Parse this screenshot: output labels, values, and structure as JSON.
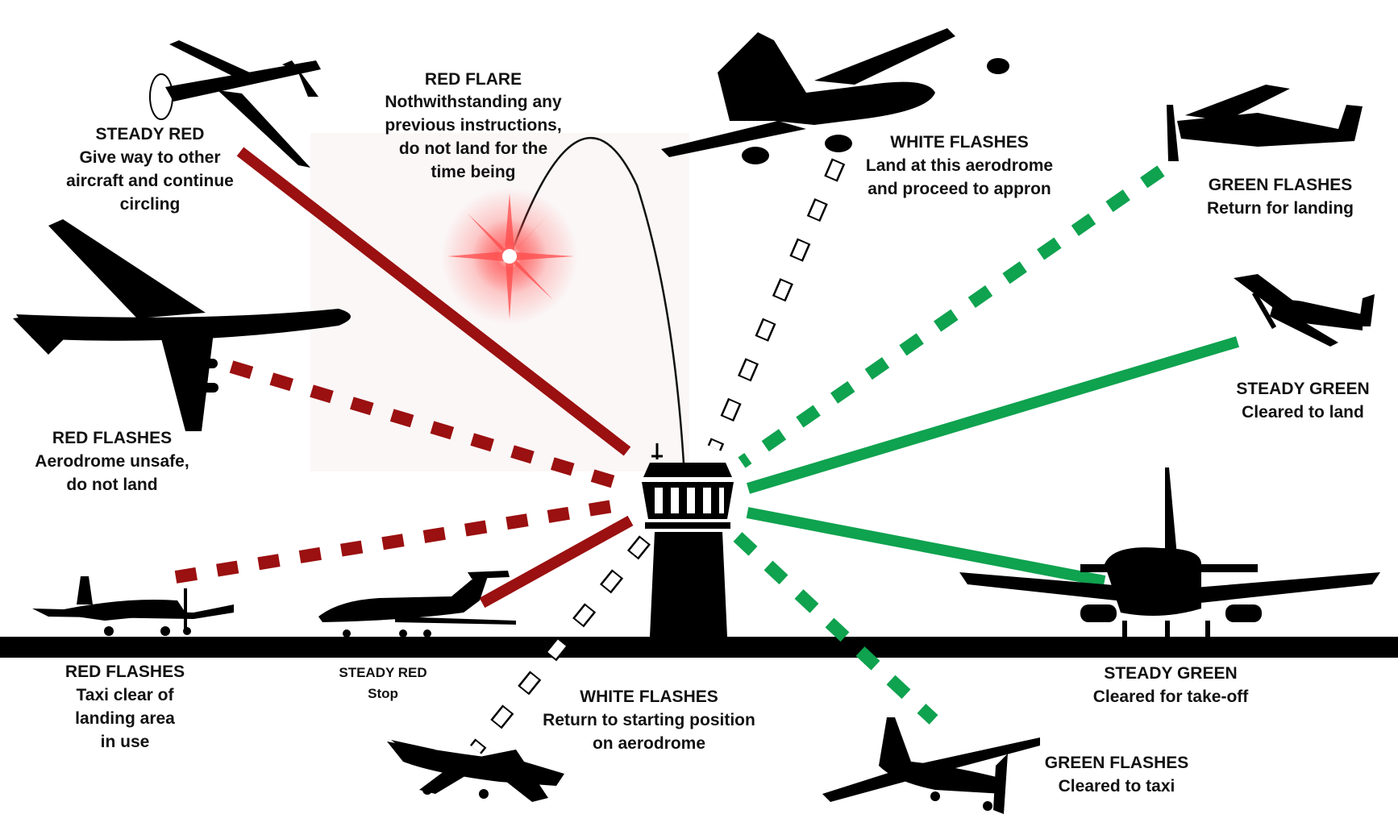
{
  "colors": {
    "red_signal": "#9b1010",
    "green_signal": "#0fa24f",
    "white_signal": "#ffffff",
    "silhouette": "#000000",
    "flare": "#ff3b3b"
  },
  "tower_icon": "control-tower-icon",
  "signals": {
    "red_flare": {
      "title": "RED FLARE",
      "lines": [
        "Nothwithstanding any",
        "previous instructions,",
        "do not land for the",
        "time being"
      ]
    },
    "steady_red_air": {
      "title": "STEADY RED",
      "lines": [
        "Give way to other",
        "aircraft and continue",
        "circling"
      ]
    },
    "red_flashes_air": {
      "title": "RED FLASHES",
      "lines": [
        "Aerodrome unsafe,",
        "do not land"
      ]
    },
    "white_flashes_air": {
      "title": "WHITE FLASHES",
      "lines": [
        "Land at this aerodrome",
        "and proceed to appron"
      ]
    },
    "green_flashes_air": {
      "title": "GREEN FLASHES",
      "lines": [
        "Return for landing"
      ]
    },
    "steady_green_air": {
      "title": "STEADY GREEN",
      "lines": [
        "Cleared to land"
      ]
    },
    "red_flashes_ground": {
      "title": "RED FLASHES",
      "lines": [
        "Taxi clear of",
        "landing area",
        "in use"
      ]
    },
    "steady_red_ground": {
      "title": "STEADY RED",
      "lines": [
        "Stop"
      ]
    },
    "white_flashes_ground": {
      "title": "WHITE FLASHES",
      "lines": [
        "Return to starting position",
        "on aerodrome"
      ]
    },
    "steady_green_ground": {
      "title": "STEADY GREEN",
      "lines": [
        "Cleared for take-off"
      ]
    },
    "green_flashes_ground": {
      "title": "GREEN FLASHES",
      "lines": [
        "Cleared to taxi"
      ]
    }
  }
}
